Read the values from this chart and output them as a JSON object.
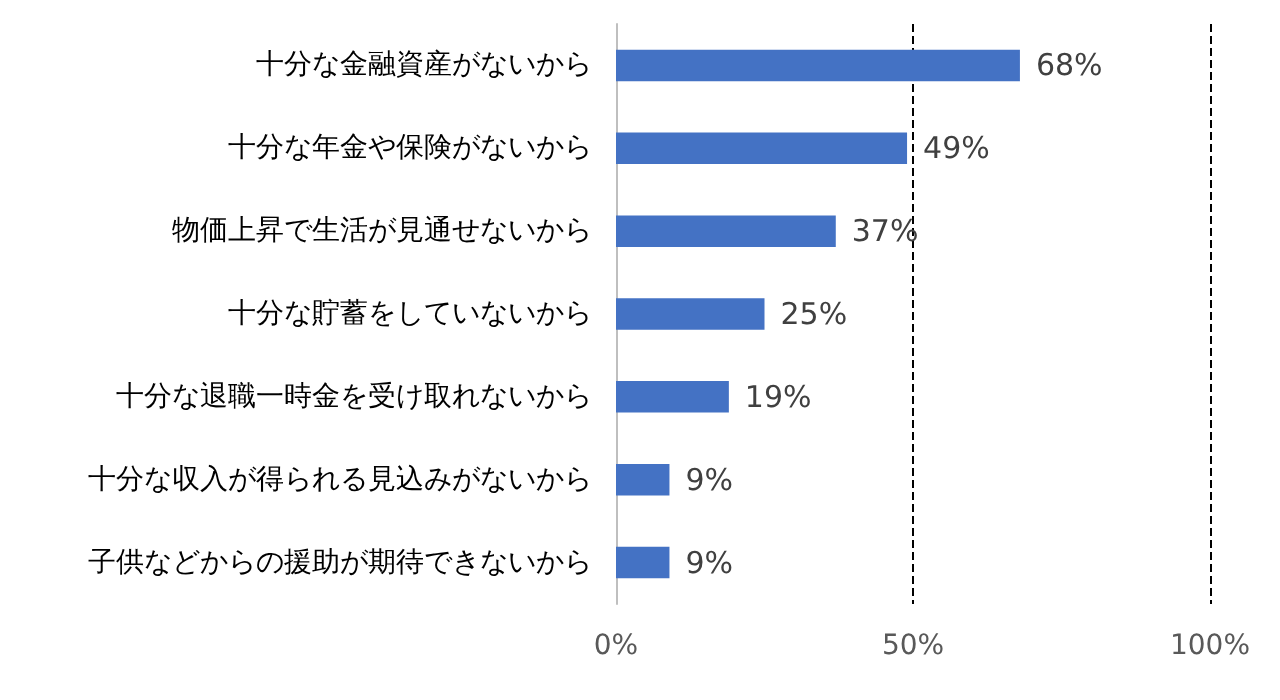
{
  "chart_data": {
    "type": "bar",
    "orientation": "horizontal",
    "categories": [
      "十分な金融資産がないから",
      "十分な年金や保険がないから",
      "物価上昇で生活が見通せないから",
      "十分な貯蓄をしていないから",
      "十分な退職一時金を受け取れないから",
      "十分な収入が得られる見込みがないから",
      "子供などからの援助が期待できないから"
    ],
    "values": [
      68,
      49,
      37,
      25,
      19,
      9,
      9
    ],
    "value_labels": [
      "68%",
      "49%",
      "37%",
      "25%",
      "19%",
      "9%",
      "9%"
    ],
    "color": "#4472c4",
    "xlim": [
      0,
      100
    ],
    "xticks": [
      {
        "value": 0,
        "label": "0%"
      },
      {
        "value": 50,
        "label": "50%"
      },
      {
        "value": 100,
        "label": "100%"
      }
    ],
    "grid": "x"
  }
}
